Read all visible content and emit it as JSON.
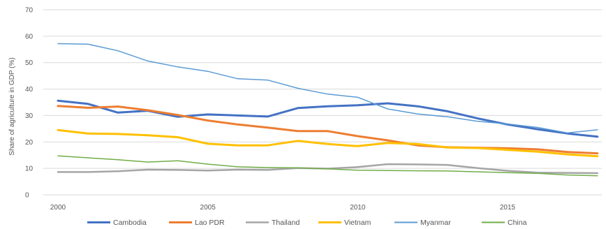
{
  "chart_data": {
    "type": "line",
    "ylabel": "Share of agriculture in GDP (%)",
    "xlim": [
      2000,
      2018
    ],
    "ylim": [
      0,
      70
    ],
    "x_ticks": [
      "2000",
      "2005",
      "2010",
      "2015"
    ],
    "y_ticks": [
      "0",
      "10",
      "20",
      "30",
      "40",
      "50",
      "60",
      "70"
    ],
    "grid": true,
    "legend_position": "bottom",
    "x": [
      2000,
      2001,
      2002,
      2003,
      2004,
      2005,
      2006,
      2007,
      2008,
      2009,
      2010,
      2011,
      2012,
      2013,
      2014,
      2015,
      2016,
      2017,
      2018
    ],
    "series": [
      {
        "name": "Cambodia",
        "color": "#4472c4",
        "width": 3,
        "values": [
          35.6,
          34.4,
          31.1,
          31.8,
          29.5,
          30.4,
          30.0,
          29.6,
          32.8,
          33.5,
          33.9,
          34.6,
          33.5,
          31.6,
          28.9,
          26.6,
          24.8,
          23.2,
          22.0
        ]
      },
      {
        "name": "Lao PDR",
        "color": "#ed7d31",
        "width": 3,
        "values": [
          33.6,
          32.9,
          33.4,
          32.0,
          30.2,
          28.1,
          26.6,
          25.4,
          24.1,
          24.1,
          22.2,
          20.6,
          18.7,
          18.0,
          17.8,
          17.6,
          17.2,
          16.2,
          15.7
        ]
      },
      {
        "name": "Thailand",
        "color": "#a5a5a5",
        "width": 2.5,
        "values": [
          8.6,
          8.6,
          8.9,
          9.5,
          9.4,
          9.2,
          9.5,
          9.4,
          10.1,
          9.9,
          10.5,
          11.6,
          11.5,
          11.3,
          10.1,
          9.1,
          8.4,
          8.3,
          8.2
        ]
      },
      {
        "name": "Vietnam",
        "color": "#ffc000",
        "width": 3,
        "values": [
          24.5,
          23.2,
          23.0,
          22.5,
          21.8,
          19.3,
          18.7,
          18.7,
          20.4,
          19.2,
          18.4,
          19.6,
          19.2,
          17.9,
          17.7,
          17.0,
          16.3,
          15.3,
          14.6
        ]
      },
      {
        "name": "Myanmar",
        "color": "#5b9bd5",
        "width": 1.5,
        "values": [
          57.2,
          57.0,
          54.5,
          50.6,
          48.4,
          46.7,
          43.9,
          43.4,
          40.3,
          38.1,
          36.9,
          32.5,
          30.6,
          29.5,
          27.8,
          26.8,
          25.5,
          23.4,
          24.6
        ]
      },
      {
        "name": "China",
        "color": "#70ad47",
        "width": 1.5,
        "values": [
          14.7,
          14.0,
          13.3,
          12.4,
          12.9,
          11.6,
          10.6,
          10.3,
          10.2,
          9.8,
          9.3,
          9.2,
          9.1,
          9.0,
          8.7,
          8.4,
          8.1,
          7.5,
          7.2
        ]
      }
    ]
  }
}
